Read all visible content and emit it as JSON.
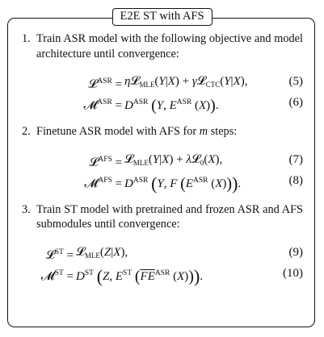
{
  "title": "E2E ST with AFS",
  "steps": [
    {
      "number": "1.",
      "text": "Train ASR model with the following objective and model architecture until convergence:",
      "equations": [
        {
          "lhs": "𝓛ASR =",
          "rhs": "η𝓛MLE(Y|X) + γ𝓛CTC(Y|X),",
          "tag": "(5)"
        },
        {
          "lhs": "𝓜ASR =",
          "rhs": "DASR (Y, EASR (X)).",
          "tag": "(6)"
        }
      ]
    },
    {
      "number": "2.",
      "text": "Finetune ASR model with AFS for m steps:",
      "equations": [
        {
          "lhs": "𝓛AFS =",
          "rhs": "𝓛MLE(Y|X) + λ𝓛0(X),",
          "tag": "(7)"
        },
        {
          "lhs": "𝓜AFS =",
          "rhs": "DASR (Y, F (EASR (X))).",
          "tag": "(8)"
        }
      ]
    },
    {
      "number": "3.",
      "text": "Train ST model with pretrained and frozen ASR and AFS submodules until convergence:",
      "equations": [
        {
          "lhs": "𝓛ST =",
          "rhs": "𝓛MLE(Z|X),",
          "tag": "(9)"
        },
        {
          "lhs": "𝓜ST =",
          "rhs": "DST (Z, EST (FEASR (X))).",
          "tag": "(10)"
        }
      ]
    }
  ]
}
